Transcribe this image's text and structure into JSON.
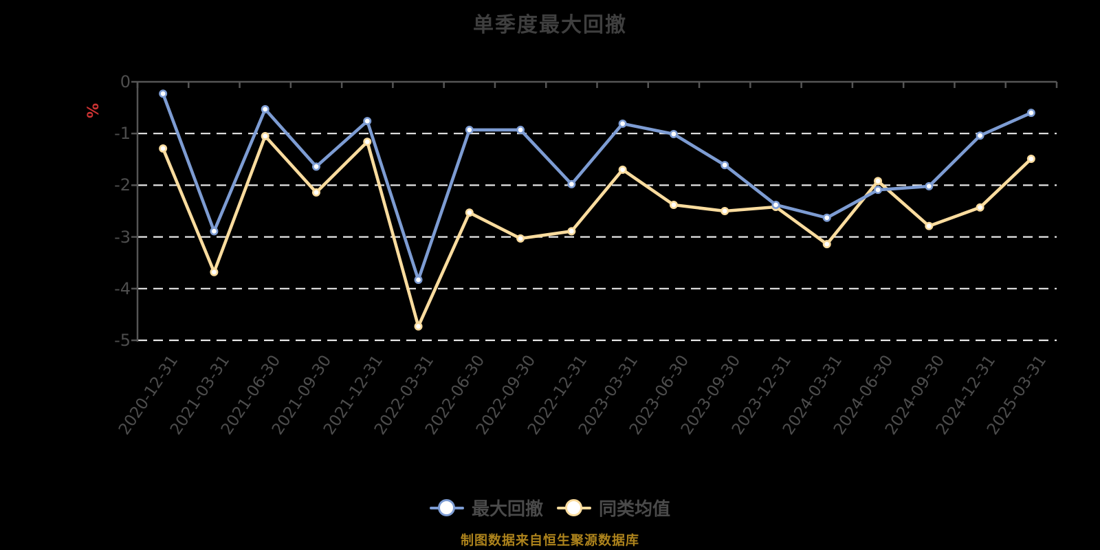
{
  "title": "单季度最大回撤",
  "y_axis_unit": "%",
  "footnote": "制图数据来自恒生聚源数据库",
  "legend": [
    {
      "label": "最大回撤",
      "color": "#7d9cd3"
    },
    {
      "label": "同类均值",
      "color": "#fadc9e"
    }
  ],
  "colors": {
    "background": "#000000",
    "series_blue": "#7d9cd3",
    "series_yellow": "#fadc9e",
    "grid_line": "#e8e8e8",
    "axis_line": "#555555",
    "tick_label": "#4d4d4d",
    "title_text": "#3f3f3f",
    "legend_text": "#4a4a4a",
    "unit_red": "#cc3333",
    "footnote_gold": "#ad831c",
    "marker_fill": "#ffffff"
  },
  "chart_data": {
    "type": "line",
    "title": "单季度最大回撤",
    "ylabel": "%",
    "ylim": [
      -5,
      0
    ],
    "yticks": [
      0,
      -1,
      -2,
      -3,
      -4,
      -5
    ],
    "grid": "horizontal dashed",
    "legend_position": "bottom",
    "categories": [
      "2020-12-31",
      "2021-03-31",
      "2021-06-30",
      "2021-09-30",
      "2021-12-31",
      "2022-03-31",
      "2022-06-30",
      "2022-09-30",
      "2022-12-31",
      "2023-03-31",
      "2023-06-30",
      "2023-09-30",
      "2023-12-31",
      "2024-03-31",
      "2024-06-30",
      "2024-09-30",
      "2024-12-31",
      "2025-03-31"
    ],
    "series": [
      {
        "name": "最大回撤",
        "color": "#7d9cd3",
        "values": [
          -0.23,
          -2.89,
          -0.53,
          -1.64,
          -0.76,
          -3.83,
          -0.93,
          -0.93,
          -1.98,
          -0.81,
          -1.01,
          -1.61,
          -2.38,
          -2.63,
          -2.09,
          -2.02,
          -1.04,
          -0.6
        ]
      },
      {
        "name": "同类均值",
        "color": "#fadc9e",
        "values": [
          -1.29,
          -3.68,
          -1.05,
          -2.14,
          -1.16,
          -4.73,
          -2.53,
          -3.03,
          -2.89,
          -1.7,
          -2.38,
          -2.5,
          -2.42,
          -3.14,
          -1.92,
          -2.79,
          -2.43,
          -1.49
        ]
      }
    ]
  }
}
